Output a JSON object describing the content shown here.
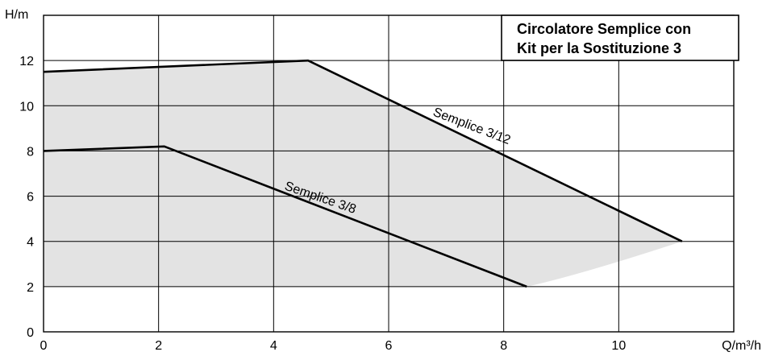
{
  "chart_data": {
    "type": "line",
    "title_lines": [
      "Circolatore Semplice con",
      "Kit per la Sostituzione 3"
    ],
    "xlabel": "Q/m³/h",
    "ylabel": "H/m",
    "xlim": [
      0,
      12
    ],
    "ylim": [
      0,
      14
    ],
    "grid": true,
    "x_ticks": [
      0,
      2,
      4,
      6,
      8,
      10
    ],
    "y_ticks": [
      0,
      2,
      4,
      6,
      8,
      10,
      12
    ],
    "shaded_region": {
      "color": "#e3e3e3",
      "upper": [
        [
          0,
          11.5
        ],
        [
          4.6,
          12.0
        ],
        [
          11.1,
          4.0
        ]
      ],
      "lower": [
        [
          11.1,
          4.0
        ],
        [
          10.2,
          3.35
        ],
        [
          9.3,
          2.5
        ],
        [
          8.4,
          2.0
        ],
        [
          0,
          2.0
        ]
      ]
    },
    "series": [
      {
        "name": "Semplice 3/12",
        "x": [
          0,
          4.6,
          11.1
        ],
        "y": [
          11.5,
          12.0,
          4.0
        ]
      },
      {
        "name": "Semplice 3/8",
        "x": [
          0,
          2.1,
          8.4
        ],
        "y": [
          8.0,
          8.2,
          2.0
        ]
      }
    ],
    "colors": {
      "line": "#000000",
      "grid": "#000000",
      "fill": "#e3e3e3",
      "background": "#ffffff"
    }
  }
}
